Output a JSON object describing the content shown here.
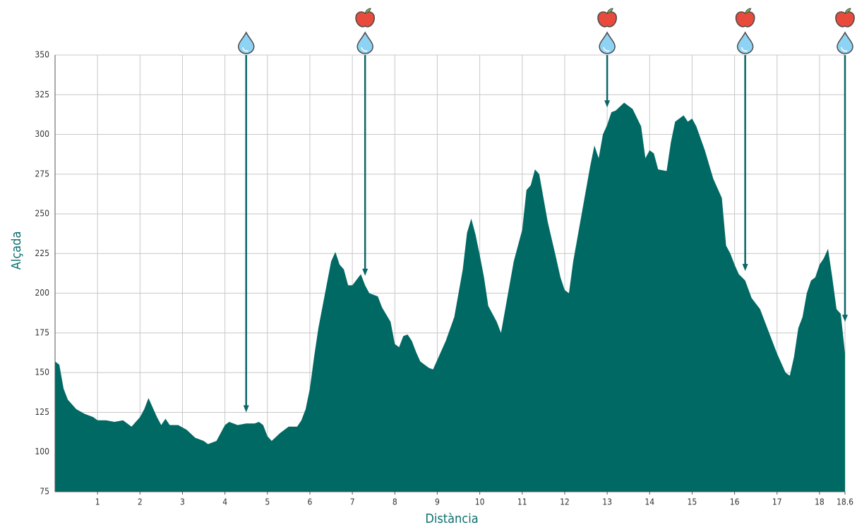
{
  "chart_data": {
    "type": "area",
    "x_label": "Distància",
    "y_label": "Alçada",
    "color": "#006963",
    "arrow_color": "#0b6666",
    "grid": true,
    "xlim": [
      0,
      18.6
    ],
    "ylim": [
      75,
      350
    ],
    "xticks": [
      1,
      2,
      3,
      4,
      5,
      6,
      7,
      8,
      9,
      10,
      11,
      12,
      13,
      14,
      15,
      16,
      17,
      18,
      18.6
    ],
    "yticks": [
      75,
      100,
      125,
      150,
      175,
      200,
      225,
      250,
      275,
      300,
      325,
      350
    ],
    "x": [
      0,
      0.1,
      0.2,
      0.3,
      0.5,
      0.7,
      0.9,
      1.0,
      1.2,
      1.4,
      1.6,
      1.8,
      2.0,
      2.1,
      2.2,
      2.3,
      2.4,
      2.5,
      2.6,
      2.7,
      2.9,
      3.1,
      3.3,
      3.5,
      3.6,
      3.8,
      3.9,
      4.0,
      4.1,
      4.3,
      4.5,
      4.7,
      4.8,
      4.9,
      5.0,
      5.1,
      5.3,
      5.5,
      5.7,
      5.8,
      5.9,
      6.0,
      6.1,
      6.2,
      6.3,
      6.4,
      6.5,
      6.6,
      6.7,
      6.8,
      6.9,
      7.0,
      7.2,
      7.3,
      7.4,
      7.6,
      7.7,
      7.9,
      8.0,
      8.1,
      8.2,
      8.3,
      8.4,
      8.5,
      8.6,
      8.8,
      8.9,
      9.0,
      9.2,
      9.4,
      9.6,
      9.7,
      9.8,
      9.9,
      10.0,
      10.1,
      10.2,
      10.4,
      10.5,
      10.6,
      10.8,
      11.0,
      11.1,
      11.2,
      11.3,
      11.4,
      11.6,
      11.8,
      11.9,
      12.0,
      12.1,
      12.2,
      12.4,
      12.6,
      12.7,
      12.8,
      12.9,
      13.0,
      13.1,
      13.2,
      13.4,
      13.6,
      13.8,
      13.9,
      14.0,
      14.1,
      14.2,
      14.4,
      14.5,
      14.6,
      14.8,
      14.9,
      15.0,
      15.1,
      15.3,
      15.5,
      15.7,
      15.8,
      15.9,
      16.0,
      16.1,
      16.25,
      16.4,
      16.6,
      16.8,
      17.0,
      17.2,
      17.3,
      17.4,
      17.5,
      17.6,
      17.7,
      17.8,
      17.9,
      18.0,
      18.1,
      18.2,
      18.3,
      18.4,
      18.5,
      18.6
    ],
    "values": [
      157,
      155,
      140,
      133,
      127,
      124,
      122,
      120,
      120,
      119,
      120,
      116,
      122,
      127,
      134,
      128,
      122,
      117,
      121,
      117,
      117,
      114,
      109,
      107,
      105,
      107,
      112,
      117,
      119,
      117,
      118,
      118,
      119,
      117,
      110,
      107,
      112,
      116,
      116,
      120,
      127,
      140,
      160,
      178,
      192,
      206,
      220,
      226,
      218,
      215,
      205,
      205,
      212,
      205,
      200,
      198,
      191,
      182,
      168,
      166,
      173,
      174,
      170,
      163,
      157,
      153,
      152,
      158,
      170,
      185,
      215,
      238,
      247,
      237,
      224,
      210,
      192,
      182,
      175,
      190,
      220,
      240,
      265,
      268,
      278,
      275,
      245,
      222,
      210,
      202,
      200,
      220,
      250,
      280,
      293,
      285,
      300,
      306,
      314,
      315,
      320,
      316,
      305,
      285,
      290,
      288,
      278,
      277,
      295,
      308,
      312,
      308,
      310,
      305,
      290,
      272,
      260,
      230,
      225,
      218,
      212,
      208,
      197,
      190,
      176,
      162,
      150,
      148,
      160,
      178,
      185,
      200,
      208,
      210,
      218,
      222,
      228,
      210,
      190,
      187,
      162
    ],
    "markers": [
      {
        "x": 4.5,
        "y": 125,
        "icons": [
          "water"
        ]
      },
      {
        "x": 7.3,
        "y": 211,
        "icons": [
          "apple",
          "water"
        ]
      },
      {
        "x": 13.0,
        "y": 317,
        "icons": [
          "apple",
          "water"
        ]
      },
      {
        "x": 16.25,
        "y": 214,
        "icons": [
          "apple",
          "water"
        ]
      },
      {
        "x": 18.6,
        "y": 182,
        "icons": [
          "apple",
          "water"
        ]
      }
    ]
  }
}
